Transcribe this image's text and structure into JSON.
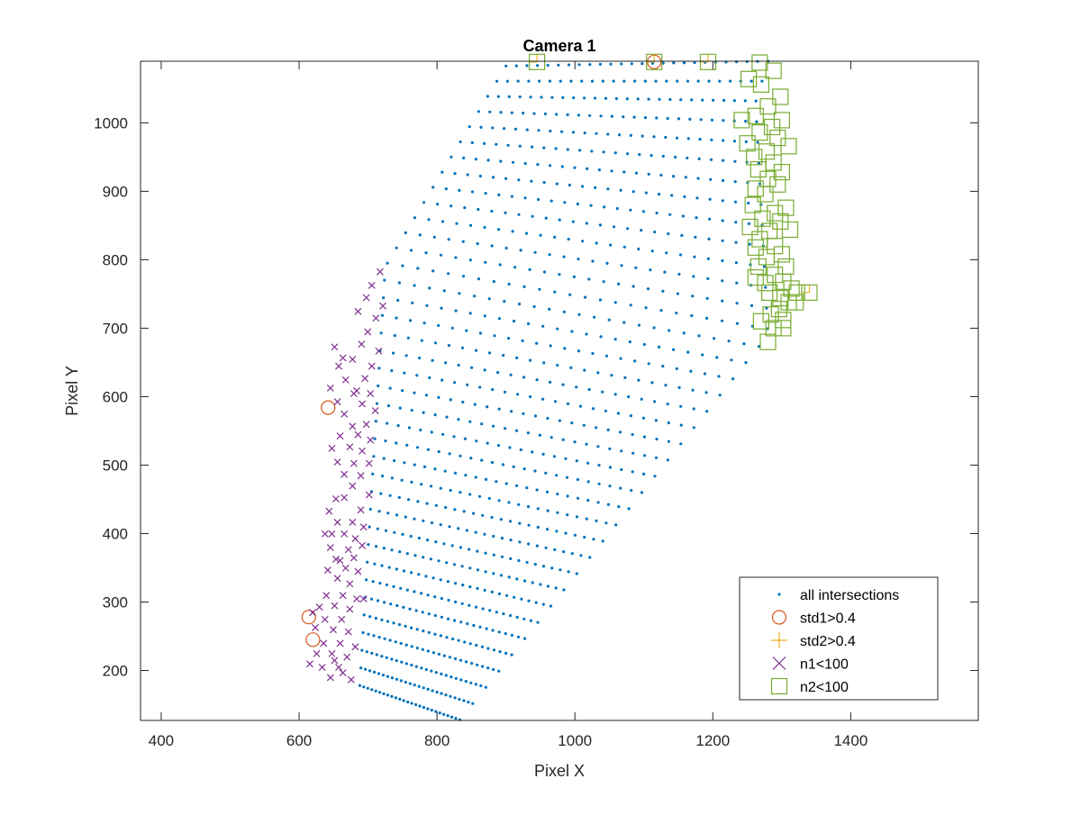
{
  "colors": {
    "all": "#0072BD",
    "std1": "#D95319",
    "std2": "#EDB120",
    "n1": "#7E2F8E",
    "n2": "#77AC30",
    "axis": "#262626"
  },
  "chart_data": {
    "type": "scatter",
    "title": "Camera 1",
    "xlabel": "Pixel X",
    "ylabel": "Pixel Y",
    "xlim": [
      370,
      1585
    ],
    "ylim": [
      127,
      1090
    ],
    "xticks": [
      400,
      600,
      800,
      1000,
      1200,
      1400
    ],
    "yticks": [
      200,
      300,
      400,
      500,
      600,
      700,
      800,
      900,
      1000
    ],
    "grid": false,
    "box": true,
    "legend_location": "bottom-right",
    "legend": [
      "all intersections",
      "std1>0.4",
      "std2>0.4",
      "n1<100",
      "n2<100"
    ],
    "all_intersections_grid": {
      "description": "quadrilateral lattice of intersection points",
      "corners": {
        "bottom_left": [
          688,
          178
        ],
        "bottom_right": [
          833,
          128
        ],
        "top_left": [
          900,
          1083
        ],
        "top_right": [
          1280,
          1090
        ]
      },
      "extra_corners": {
        "mid_left": [
          725,
          790
        ],
        "right_lower": [
          1280,
          690
        ],
        "right_upper": [
          1262,
          1030
        ]
      },
      "rows": 38,
      "cols": 26
    },
    "series": [
      {
        "name": "std1>0.4",
        "marker": "circle",
        "points": [
          [
            642,
            584
          ],
          [
            614,
            278
          ],
          [
            620,
            245
          ],
          [
            1115,
            1089
          ]
        ]
      },
      {
        "name": "std2>0.4",
        "marker": "plus",
        "points": [
          [
            945,
            1089
          ],
          [
            1193,
            1089
          ],
          [
            1340,
            752
          ],
          [
            1115,
            1089
          ]
        ]
      },
      {
        "name": "n1<100",
        "marker": "x",
        "points": [
          [
            722,
            778
          ],
          [
            710,
            758
          ],
          [
            702,
            740
          ],
          [
            690,
            720
          ],
          [
            726,
            728
          ],
          [
            716,
            710
          ],
          [
            704,
            690
          ],
          [
            695,
            672
          ],
          [
            656,
            668
          ],
          [
            668,
            652
          ],
          [
            682,
            650
          ],
          [
            720,
            662
          ],
          [
            710,
            640
          ],
          [
            700,
            622
          ],
          [
            688,
            604
          ],
          [
            662,
            640
          ],
          [
            672,
            620
          ],
          [
            684,
            600
          ],
          [
            696,
            585
          ],
          [
            650,
            608
          ],
          [
            660,
            588
          ],
          [
            670,
            570
          ],
          [
            682,
            552
          ],
          [
            708,
            600
          ],
          [
            715,
            575
          ],
          [
            702,
            555
          ],
          [
            690,
            540
          ],
          [
            678,
            522
          ],
          [
            664,
            538
          ],
          [
            652,
            520
          ],
          [
            660,
            500
          ],
          [
            670,
            482
          ],
          [
            684,
            498
          ],
          [
            696,
            516
          ],
          [
            708,
            532
          ],
          [
            706,
            498
          ],
          [
            694,
            480
          ],
          [
            682,
            465
          ],
          [
            670,
            448
          ],
          [
            658,
            446
          ],
          [
            648,
            428
          ],
          [
            660,
            412
          ],
          [
            670,
            395
          ],
          [
            682,
            412
          ],
          [
            694,
            430
          ],
          [
            706,
            452
          ],
          [
            698,
            405
          ],
          [
            686,
            388
          ],
          [
            676,
            372
          ],
          [
            664,
            356
          ],
          [
            652,
            395
          ],
          [
            642,
            395
          ],
          [
            650,
            375
          ],
          [
            658,
            358
          ],
          [
            646,
            342
          ],
          [
            660,
            330
          ],
          [
            672,
            345
          ],
          [
            684,
            360
          ],
          [
            696,
            378
          ],
          [
            690,
            340
          ],
          [
            678,
            322
          ],
          [
            668,
            305
          ],
          [
            656,
            290
          ],
          [
            644,
            305
          ],
          [
            634,
            288
          ],
          [
            642,
            270
          ],
          [
            654,
            255
          ],
          [
            666,
            270
          ],
          [
            678,
            285
          ],
          [
            688,
            300
          ],
          [
            676,
            252
          ],
          [
            664,
            235
          ],
          [
            652,
            220
          ],
          [
            640,
            235
          ],
          [
            630,
            220
          ],
          [
            620,
            205
          ],
          [
            638,
            200
          ],
          [
            650,
            185
          ],
          [
            662,
            200
          ],
          [
            674,
            215
          ],
          [
            686,
            230
          ],
          [
            680,
            182
          ],
          [
            668,
            192
          ],
          [
            656,
            210
          ],
          [
            698,
            300
          ],
          [
            628,
            258
          ],
          [
            624,
            280
          ]
        ]
      },
      {
        "name": "n2<100",
        "marker": "square",
        "points": [
          [
            945,
            1089
          ],
          [
            1115,
            1089
          ],
          [
            1193,
            1089
          ],
          [
            1268,
            1088
          ],
          [
            1288,
            1076
          ],
          [
            1252,
            1064
          ],
          [
            1270,
            1056
          ],
          [
            1298,
            1038
          ],
          [
            1280,
            1024
          ],
          [
            1262,
            1010
          ],
          [
            1242,
            1004
          ],
          [
            1300,
            1004
          ],
          [
            1286,
            994
          ],
          [
            1268,
            986
          ],
          [
            1250,
            970
          ],
          [
            1294,
            978
          ],
          [
            1310,
            966
          ],
          [
            1278,
            958
          ],
          [
            1260,
            950
          ],
          [
            1288,
            942
          ],
          [
            1300,
            928
          ],
          [
            1266,
            932
          ],
          [
            1280,
            918
          ],
          [
            1262,
            904
          ],
          [
            1294,
            910
          ],
          [
            1276,
            896
          ],
          [
            1258,
            880
          ],
          [
            1306,
            876
          ],
          [
            1290,
            868
          ],
          [
            1272,
            860
          ],
          [
            1254,
            848
          ],
          [
            1298,
            856
          ],
          [
            1312,
            844
          ],
          [
            1282,
            842
          ],
          [
            1268,
            830
          ],
          [
            1290,
            820
          ],
          [
            1300,
            808
          ],
          [
            1262,
            818
          ],
          [
            1278,
            804
          ],
          [
            1266,
            790
          ],
          [
            1306,
            790
          ],
          [
            1290,
            778
          ],
          [
            1276,
            766
          ],
          [
            1262,
            774
          ],
          [
            1302,
            768
          ],
          [
            1314,
            758
          ],
          [
            1282,
            752
          ],
          [
            1298,
            744
          ],
          [
            1322,
            752
          ],
          [
            1340,
            752
          ],
          [
            1310,
            738
          ],
          [
            1296,
            728
          ],
          [
            1284,
            720
          ],
          [
            1320,
            738
          ],
          [
            1270,
            710
          ],
          [
            1288,
            700
          ],
          [
            1302,
            712
          ],
          [
            1280,
            680
          ],
          [
            1302,
            700
          ]
        ]
      }
    ]
  }
}
